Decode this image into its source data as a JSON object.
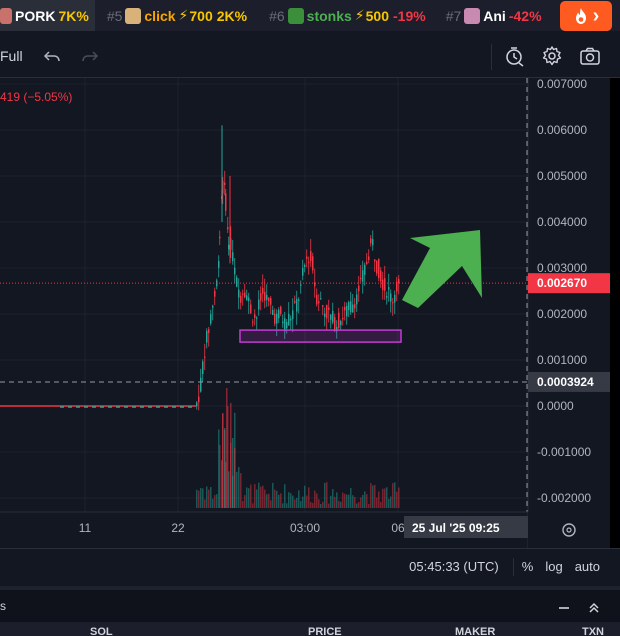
{
  "ticker": {
    "items": [
      {
        "rank": "",
        "name": "PORK",
        "change": "7K%",
        "change_dir": "up",
        "avatar_color": "#c9726c",
        "name_color": "#ffffff",
        "cap": ""
      },
      {
        "rank": "#5",
        "name": "click",
        "cap": "700",
        "change": "2K%",
        "change_dir": "up",
        "avatar_color": "#d9b27a",
        "name_color": "#f7a600"
      },
      {
        "rank": "#6",
        "name": "stonks",
        "cap": "500",
        "change": "-19%",
        "change_dir": "down",
        "avatar_color": "#3b8f3b",
        "name_color": "#4caf50"
      },
      {
        "rank": "#7",
        "name": "Ani",
        "cap": "",
        "change": "-42%",
        "change_dir": "down",
        "avatar_color": "#c98ab2",
        "name_color": "#ffffff"
      }
    ],
    "fire_label": "›",
    "fire_icon": "flame-icon"
  },
  "toolbar": {
    "full_label": "Full",
    "icons": [
      "undo-icon",
      "redo-icon",
      "replay-icon",
      "settings-icon",
      "camera-icon"
    ]
  },
  "legend": {
    "change_text": "419 (−5.05%)"
  },
  "price_axis": {
    "ticks": [
      "0.007000",
      "0.006000",
      "0.005000",
      "0.004000",
      "0.003000",
      "0.002000",
      "0.001000",
      "0.0000",
      "-0.001000",
      "-0.002000"
    ],
    "current_price": "0.002670",
    "crosshair_price": "0.0003924"
  },
  "time_axis": {
    "ticks": [
      "11",
      "22",
      "03:00",
      "06"
    ],
    "crosshair_time": "25 Jul '25   09:25"
  },
  "status": {
    "clock": "05:45:33 (UTC)",
    "percent_label": "%",
    "log_label": "log",
    "auto_label": "auto"
  },
  "panel": {
    "title": "s",
    "columns": [
      "SOL",
      "PRICE",
      "MAKER",
      "TXN"
    ]
  },
  "colors": {
    "up": "#26a69a",
    "down": "#f23645",
    "arrow": "#4caf50",
    "box": "#c33bd4",
    "background": "#131722"
  }
}
